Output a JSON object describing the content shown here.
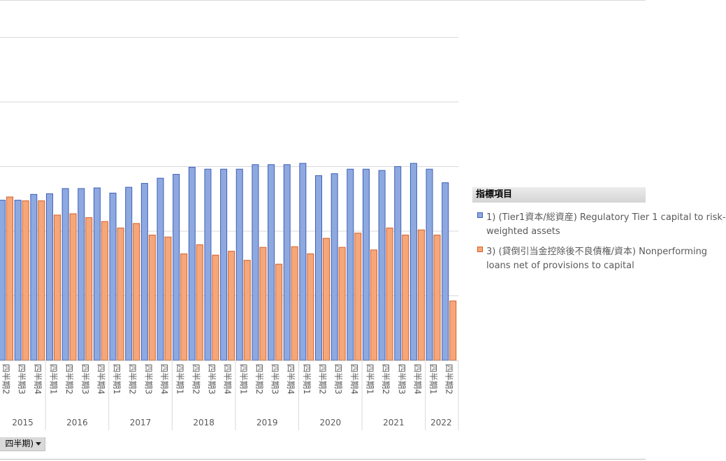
{
  "colors": {
    "series1": "#8ea9e0",
    "series1_border": "#3f5fb7",
    "series2": "#f6a77a",
    "series2_border": "#d2602a",
    "grid": "#d9d9d9"
  },
  "chart_data": {
    "type": "bar",
    "quarters": [
      "四半期2",
      "四半期3",
      "四半期4",
      "四半期1",
      "四半期2",
      "四半期3",
      "四半期4",
      "四半期1",
      "四半期2",
      "四半期3",
      "四半期4",
      "四半期1",
      "四半期2",
      "四半期3",
      "四半期4",
      "四半期1",
      "四半期2",
      "四半期3",
      "四半期4",
      "四半期1",
      "四半期2",
      "四半期3",
      "四半期4",
      "四半期1",
      "四半期2",
      "四半期3",
      "四半期4",
      "四半期1",
      "四半期2"
    ],
    "years": [
      {
        "label": "2015",
        "count": 3
      },
      {
        "label": "2016",
        "count": 4
      },
      {
        "label": "2017",
        "count": 4
      },
      {
        "label": "2018",
        "count": 4
      },
      {
        "label": "2019",
        "count": 4
      },
      {
        "label": "2020",
        "count": 4
      },
      {
        "label": "2021",
        "count": 4
      },
      {
        "label": "2022",
        "count": 2
      }
    ],
    "y_relative": {
      "note": "no y-axis tick labels are visible; values are relative to the horizontal gridlines (0 = baseline, 1 = one gridline step)",
      "ylim": [
        0,
        5.6
      ],
      "gridlines": [
        1,
        2,
        3,
        4,
        5
      ]
    },
    "series": [
      {
        "name": "1) (Tier1資本/総資産) Regulatory Tier 1 capital to risk-weighted assets",
        "values": [
          2.48,
          2.48,
          2.57,
          2.58,
          2.66,
          2.66,
          2.67,
          2.59,
          2.68,
          2.74,
          2.82,
          2.88,
          2.99,
          2.96,
          2.96,
          2.96,
          3.03,
          3.03,
          3.03,
          3.05,
          2.86,
          2.89,
          2.96,
          2.96,
          2.94,
          3.0,
          3.05,
          2.96,
          2.75
        ]
      },
      {
        "name": "3) (貸倒引当金控除後不良債権/資本) Nonperforming loans net of provisions to capital",
        "values": [
          2.53,
          2.47,
          2.47,
          2.25,
          2.27,
          2.21,
          2.15,
          2.05,
          2.12,
          1.94,
          1.91,
          1.65,
          1.79,
          1.63,
          1.69,
          1.55,
          1.75,
          1.49,
          1.76,
          1.65,
          1.89,
          1.75,
          1.97,
          1.71,
          2.05,
          1.94,
          2.02,
          1.94,
          0.92
        ]
      }
    ]
  },
  "legend": {
    "title": "指標項目",
    "items": [
      {
        "line1": "1) (Tier1資本/総資産) Regulatory Tier 1 capital to risk-",
        "line2": "weighted assets"
      },
      {
        "line1": "3) (貸倒引当金控除後不良債権/資本) Nonperforming",
        "line2": "loans net of provisions to capital"
      }
    ]
  },
  "field_button": {
    "label": "四半期)"
  }
}
